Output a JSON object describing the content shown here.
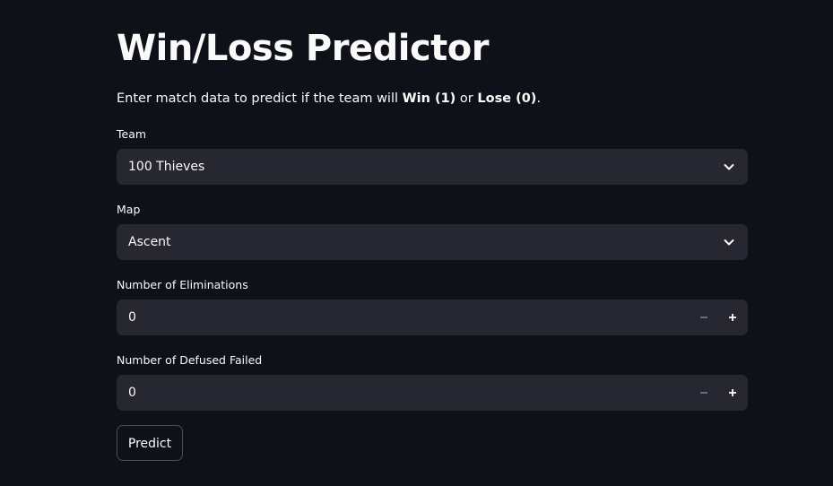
{
  "page": {
    "title": "Win/Loss Predictor",
    "intro": {
      "prefix": "Enter match data to predict if the team will ",
      "win_label": "Win (1)",
      "middle": " or ",
      "lose_label": "Lose (0)",
      "suffix": "."
    }
  },
  "form": {
    "team": {
      "label": "Team",
      "selected": "100 Thieves",
      "icon": "chevron-down-icon"
    },
    "map": {
      "label": "Map",
      "selected": "Ascent",
      "icon": "chevron-down-icon"
    },
    "eliminations": {
      "label": "Number of Eliminations",
      "value": "0",
      "decrement_symbol": "−",
      "increment_symbol": "+"
    },
    "defused_failed": {
      "label": "Number of Defused Failed",
      "value": "0",
      "decrement_symbol": "−",
      "increment_symbol": "+"
    },
    "submit_label": "Predict"
  },
  "colors": {
    "background": "#0e1117",
    "field_background": "#262730",
    "text": "#fafafa",
    "muted_icon": "#8b8d98",
    "button_border": "#4a4c57"
  }
}
